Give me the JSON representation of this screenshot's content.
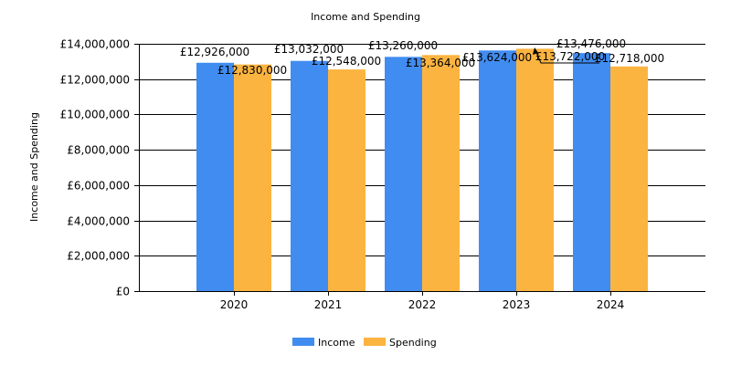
{
  "chart_data": {
    "type": "bar",
    "title": "Income and Spending",
    "ylabel": "Income and Spending",
    "xlabel": "",
    "categories": [
      "2020",
      "2021",
      "2022",
      "2023",
      "2024"
    ],
    "series": [
      {
        "name": "Income",
        "color": "#418CF0",
        "values": [
          12926000,
          13032000,
          13260000,
          13624000,
          13476000
        ],
        "labels": [
          "£12,926,000",
          "£13,032,000",
          "£13,260,000",
          "£13,624,000",
          "£13,476,000"
        ]
      },
      {
        "name": "Spending",
        "color": "#FCB441",
        "values": [
          12830000,
          12548000,
          13364000,
          13722000,
          12718000
        ],
        "labels": [
          "£12,830,000",
          "£12,548,000",
          "£13,364,000",
          "£13,722,000",
          "£12,718,000"
        ]
      }
    ],
    "ylim": [
      0,
      14000000
    ],
    "yticks": [
      0,
      2000000,
      4000000,
      6000000,
      8000000,
      10000000,
      12000000,
      14000000
    ],
    "ytick_labels": [
      "£0",
      "£2,000,000",
      "£4,000,000",
      "£6,000,000",
      "£8,000,000",
      "£10,000,000",
      "£12,000,000",
      "£14,000,000"
    ],
    "grid": true,
    "legend": "bottom-center"
  }
}
